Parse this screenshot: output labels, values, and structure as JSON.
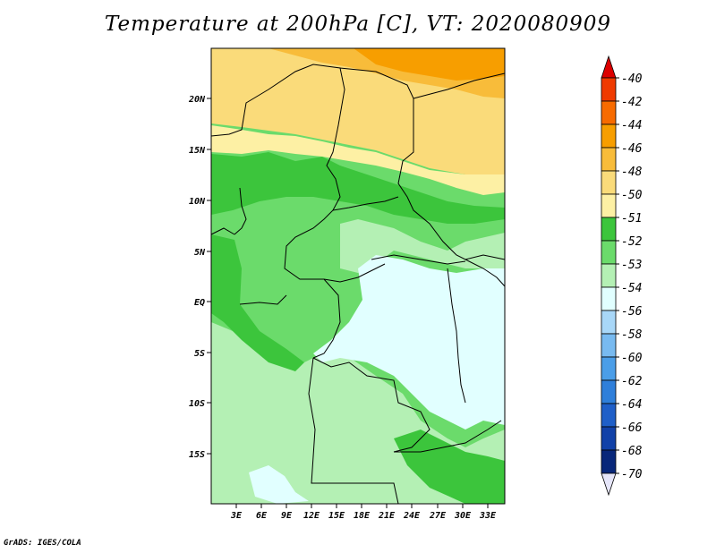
{
  "title": "Temperature at 200hPa [C], VT: 2020080909",
  "credit": "GrADS: IGES/COLA",
  "map": {
    "lat_labels": [
      "20N",
      "15N",
      "10N",
      "5N",
      "EQ",
      "5S",
      "10S",
      "15S"
    ],
    "lon_labels": [
      "3E",
      "6E",
      "9E",
      "12E",
      "15E",
      "18E",
      "21E",
      "24E",
      "27E",
      "30E",
      "33E"
    ]
  },
  "colorbar": {
    "labels": [
      "-40",
      "-42",
      "-44",
      "-46",
      "-48",
      "-50",
      "-51",
      "-52",
      "-53",
      "-54",
      "-56",
      "-58",
      "-60",
      "-62",
      "-64",
      "-66",
      "-68",
      "-70"
    ],
    "colors": {
      "c_lt_m40": "#dc0000",
      "c_m40_m42": "#ef3a00",
      "c_m42_m44": "#f76b00",
      "c_m44_m46": "#f79e00",
      "c_m46_m48": "#f8bc3a",
      "c_m48_m50": "#fadb7a",
      "c_m50_m51": "#fdf0a4",
      "c_m51_m52": "#3cc53c",
      "c_m52_m53": "#6bdb6b",
      "c_m53_m54": "#b4f0b4",
      "c_m54_m56": "#e1ffff",
      "c_m56_m58": "#a8d7f8",
      "c_m58_m60": "#78baf0",
      "c_m60_m62": "#4b9ee8",
      "c_m62_m64": "#2f7fda",
      "c_m64_m66": "#1f5fc8",
      "c_m66_m68": "#1141a8",
      "c_m68_m70": "#08277a",
      "c_gt_m70": "#e6e6fa"
    }
  }
}
